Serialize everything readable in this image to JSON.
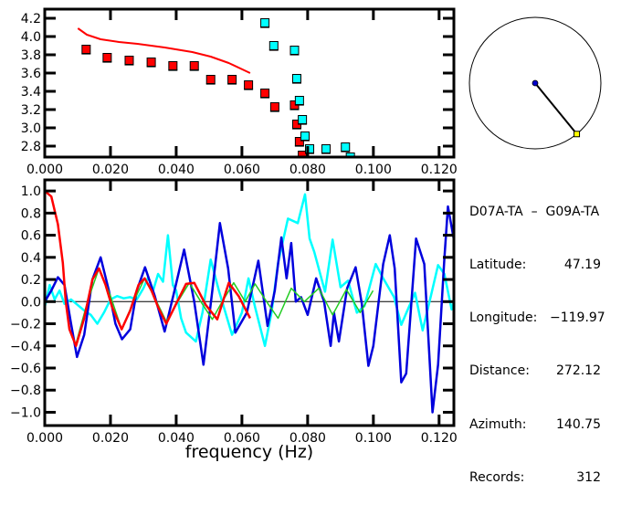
{
  "chart_data": [
    {
      "type": "scatter",
      "title": "",
      "xlabel": "",
      "ylabel": "",
      "xlim": [
        0,
        0.1245
      ],
      "ylim": [
        2.68,
        4.3
      ],
      "grid": false,
      "xticks": [
        "0.000",
        "0.020",
        "0.040",
        "0.060",
        "0.080",
        "0.100",
        "0.120"
      ],
      "xtick_values": [
        0,
        0.02,
        0.04,
        0.06,
        0.08,
        0.1,
        0.12
      ],
      "yticks": [
        "4.2",
        "4.0",
        "3.8",
        "3.6",
        "3.4",
        "3.2",
        "3.0",
        "2.8"
      ],
      "ytick_values": [
        4.2,
        4.0,
        3.8,
        3.6,
        3.4,
        3.2,
        3.0,
        2.8
      ],
      "series": [
        {
          "name": "red-measured",
          "kind": "squares",
          "color": "#ff0000",
          "x": [
            0.0126,
            0.019,
            0.0257,
            0.0324,
            0.039,
            0.0455,
            0.0505,
            0.057,
            0.062,
            0.067,
            0.07,
            0.076,
            0.0767,
            0.0775,
            0.0784
          ],
          "y": [
            3.86,
            3.77,
            3.74,
            3.72,
            3.68,
            3.68,
            3.53,
            3.53,
            3.47,
            3.38,
            3.23,
            3.25,
            3.04,
            2.85,
            2.7
          ]
        },
        {
          "name": "cyan-measured",
          "kind": "squares",
          "color": "#00ffff",
          "x": [
            0.067,
            0.0697,
            0.076,
            0.0767,
            0.0775,
            0.0784,
            0.0792,
            0.0806,
            0.0856,
            0.0915,
            0.093
          ],
          "y": [
            4.15,
            3.9,
            3.85,
            3.54,
            3.3,
            3.09,
            2.91,
            2.77,
            2.77,
            2.79,
            2.68
          ]
        },
        {
          "name": "red-model",
          "kind": "line",
          "color": "#ff0000",
          "x": [
            0.0101,
            0.0128,
            0.017,
            0.0226,
            0.0282,
            0.0365,
            0.0449,
            0.0505,
            0.056,
            0.0625
          ],
          "y": [
            4.09,
            4.02,
            3.97,
            3.94,
            3.92,
            3.88,
            3.83,
            3.78,
            3.71,
            3.6
          ]
        }
      ]
    },
    {
      "type": "line",
      "title": "",
      "xlabel": "frequency (Hz)",
      "ylabel": "",
      "xlim": [
        0,
        0.1245
      ],
      "ylim": [
        -1.12,
        1.1
      ],
      "grid": false,
      "zero_line": true,
      "xticks": [
        "0.000",
        "0.020",
        "0.040",
        "0.060",
        "0.080",
        "0.100",
        "0.120"
      ],
      "xtick_values": [
        0,
        0.02,
        0.04,
        0.06,
        0.08,
        0.1,
        0.12
      ],
      "yticks": [
        "1.0",
        "0.8",
        "0.6",
        "0.4",
        "0.2",
        "0.0",
        "−0.2",
        "−0.4",
        "−0.6",
        "−0.8",
        "−1.0"
      ],
      "ytick_values": [
        1.0,
        0.8,
        0.6,
        0.4,
        0.2,
        0.0,
        -0.2,
        -0.4,
        -0.6,
        -0.8,
        -1.0
      ],
      "series": [
        {
          "name": "cyan",
          "color": "#00ffff",
          "x": [
            0,
            0.0015,
            0.003,
            0.0045,
            0.006,
            0.008,
            0.01,
            0.012,
            0.014,
            0.016,
            0.018,
            0.02,
            0.022,
            0.024,
            0.026,
            0.028,
            0.03,
            0.0315,
            0.033,
            0.0345,
            0.036,
            0.0375,
            0.039,
            0.04,
            0.0415,
            0.043,
            0.046,
            0.048,
            0.0505,
            0.053,
            0.057,
            0.06,
            0.062,
            0.064,
            0.067,
            0.069,
            0.071,
            0.074,
            0.077,
            0.0792,
            0.0806,
            0.082,
            0.0853,
            0.0876,
            0.09,
            0.0923,
            0.095,
            0.0973,
            0.1007,
            0.103,
            0.1063,
            0.1085,
            0.1105,
            0.1127,
            0.115,
            0.1175,
            0.1197,
            0.1216,
            0.1238,
            0.1245
          ],
          "y": [
            -0.05,
            0.15,
            0.02,
            0.1,
            -0.02,
            0.02,
            -0.03,
            -0.08,
            -0.12,
            -0.2,
            -0.1,
            0.02,
            0.05,
            0.03,
            0.04,
            0.02,
            0.12,
            0.22,
            0.1,
            0.25,
            0.18,
            0.6,
            0.15,
            0.1,
            -0.15,
            -0.28,
            -0.36,
            -0.1,
            0.38,
            0.1,
            -0.3,
            -0.1,
            0.21,
            -0.05,
            -0.4,
            -0.1,
            0.35,
            0.75,
            0.71,
            0.97,
            0.57,
            0.45,
            0.09,
            0.56,
            0.13,
            0.19,
            -0.1,
            -0.04,
            0.34,
            0.21,
            0.04,
            -0.21,
            -0.07,
            0.08,
            -0.26,
            0.05,
            0.33,
            0.25,
            -0.07,
            0.0
          ]
        },
        {
          "name": "blue",
          "color": "#0000dd",
          "x": [
            0,
            0.002,
            0.004,
            0.006,
            0.008,
            0.0098,
            0.012,
            0.0145,
            0.017,
            0.0195,
            0.0215,
            0.0235,
            0.026,
            0.028,
            0.0305,
            0.0335,
            0.0365,
            0.0395,
            0.0424,
            0.0455,
            0.0483,
            0.051,
            0.0533,
            0.0558,
            0.058,
            0.0615,
            0.065,
            0.0678,
            0.07,
            0.072,
            0.0736,
            0.075,
            0.0764,
            0.078,
            0.08,
            0.0826,
            0.085,
            0.087,
            0.088,
            0.0895,
            0.092,
            0.0946,
            0.0965,
            0.0985,
            0.1,
            0.103,
            0.105,
            0.1065,
            0.1085,
            0.11,
            0.113,
            0.1155,
            0.118,
            0.1197,
            0.1216,
            0.1227,
            0.1245
          ],
          "y": [
            0.0,
            0.1,
            0.22,
            0.15,
            -0.2,
            -0.5,
            -0.3,
            0.2,
            0.4,
            0.1,
            -0.2,
            -0.34,
            -0.25,
            0.1,
            0.31,
            0.05,
            -0.27,
            0.1,
            0.47,
            0.0,
            -0.57,
            0.1,
            0.71,
            0.3,
            -0.28,
            -0.1,
            0.37,
            -0.22,
            0.1,
            0.58,
            0.21,
            0.53,
            0.0,
            0.04,
            -0.12,
            0.21,
            0.0,
            -0.4,
            -0.1,
            -0.36,
            0.12,
            0.31,
            -0.02,
            -0.58,
            -0.4,
            0.34,
            0.6,
            0.3,
            -0.73,
            -0.65,
            0.57,
            0.34,
            -1.0,
            -0.57,
            0.39,
            0.86,
            0.56
          ]
        },
        {
          "name": "green",
          "color": "#22cc22",
          "x": [
            0.0095,
            0.013,
            0.0165,
            0.02,
            0.0234,
            0.027,
            0.0304,
            0.0337,
            0.037,
            0.0405,
            0.044,
            0.0475,
            0.051,
            0.054,
            0.0575,
            0.061,
            0.064,
            0.0675,
            0.071,
            0.075,
            0.079,
            0.0834,
            0.0876,
            0.0918,
            0.096,
            0.0999
          ],
          "y": [
            -0.38,
            0.0,
            0.3,
            0.05,
            -0.25,
            0.0,
            0.21,
            0.02,
            -0.18,
            0.0,
            0.17,
            0.0,
            -0.16,
            0.0,
            0.17,
            0.0,
            0.16,
            0.0,
            -0.15,
            0.12,
            0.0,
            0.12,
            -0.12,
            0.11,
            -0.1,
            0.1
          ]
        },
        {
          "name": "red",
          "color": "#ff0000",
          "x": [
            0,
            0.002,
            0.004,
            0.0055,
            0.0064,
            0.0075,
            0.0095,
            0.012,
            0.0145,
            0.0165,
            0.0185,
            0.0205,
            0.0234,
            0.026,
            0.0285,
            0.0304,
            0.0325,
            0.0345,
            0.037,
            0.04,
            0.043,
            0.0455,
            0.049,
            0.0525,
            0.056,
            0.059,
            0.0625
          ],
          "y": [
            1.0,
            0.95,
            0.7,
            0.35,
            0.0,
            -0.25,
            -0.4,
            -0.15,
            0.2,
            0.3,
            0.15,
            -0.05,
            -0.25,
            -0.08,
            0.15,
            0.21,
            0.1,
            -0.05,
            -0.2,
            -0.02,
            0.16,
            0.17,
            -0.03,
            -0.16,
            0.17,
            0.05,
            -0.15
          ]
        }
      ]
    }
  ],
  "azimuth_plot": {
    "azimuth_deg": 140.75,
    "center_marker_color": "#0000cc",
    "station_marker_color": "#ffff00"
  },
  "info": {
    "title": "D07A-TA  –  G09A-TA",
    "rows": [
      {
        "label": "Latitude:",
        "value": "47.19"
      },
      {
        "label": "Longitude:",
        "value": "−119.97"
      },
      {
        "label": "Distance:",
        "value": "272.12"
      },
      {
        "label": "Azimuth:",
        "value": "140.75"
      },
      {
        "label": "Records:",
        "value": "312"
      }
    ]
  }
}
